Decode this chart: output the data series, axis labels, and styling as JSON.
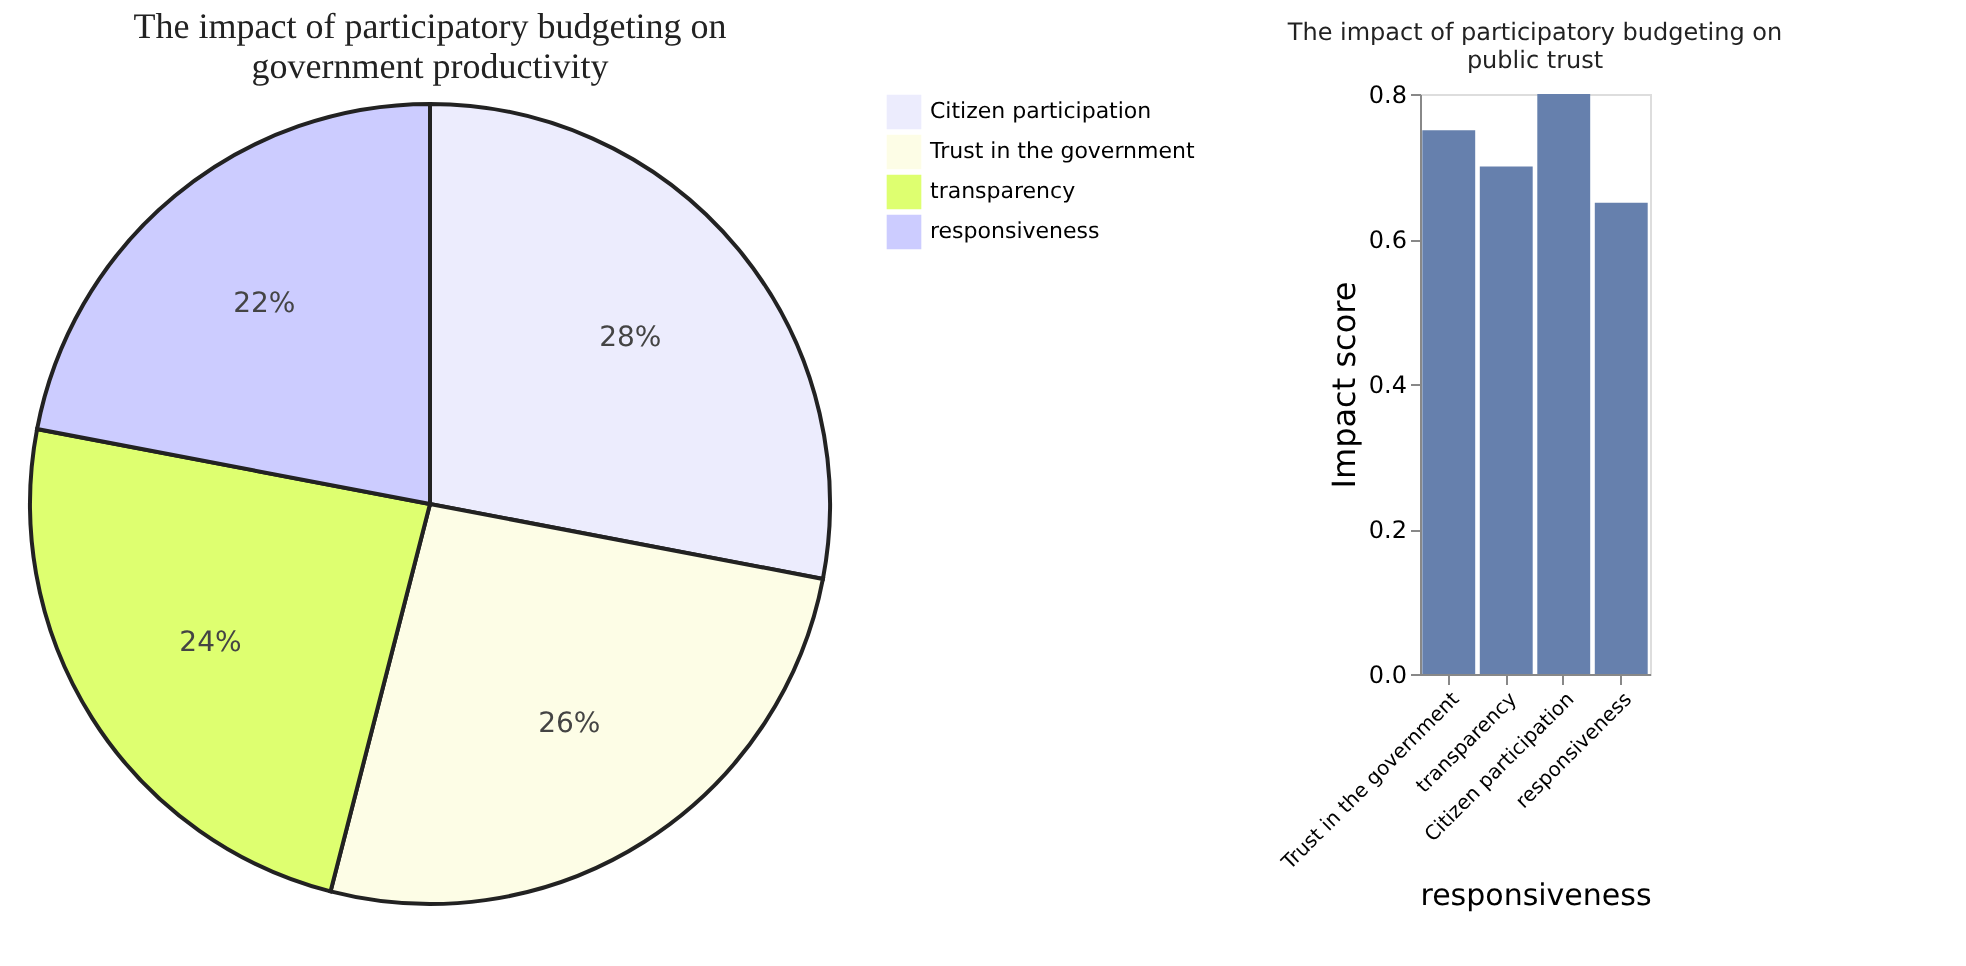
{
  "chart_data": [
    {
      "type": "pie",
      "title": "The impact of participatory budgeting on government productivity",
      "categories": [
        "Citizen participation",
        "Trust in the government",
        "transparency",
        "responsiveness"
      ],
      "values": [
        28,
        26,
        24,
        22
      ],
      "colors": [
        "#ececfd",
        "#fdfde6",
        "#deff70",
        "#ccccff"
      ],
      "value_labels": [
        "28%",
        "26%",
        "24%",
        "22%"
      ],
      "legend": "right"
    },
    {
      "type": "bar",
      "title": "The impact of participatory budgeting on public trust",
      "categories": [
        "Trust in the government",
        "transparency",
        "Citizen participation",
        "responsiveness"
      ],
      "values": [
        0.75,
        0.7,
        0.8,
        0.65
      ],
      "color": "#6680ad",
      "xlabel": "responsiveness",
      "ylabel": "Impact score",
      "ylim": [
        0,
        0.8
      ],
      "yticks": [
        {
          "value": 0,
          "label": "0.0"
        },
        {
          "value": 0.2,
          "label": "0.2"
        },
        {
          "value": 0.4,
          "label": "0.4"
        },
        {
          "value": 0.6,
          "label": "0.6"
        },
        {
          "value": 0.8,
          "label": "0.8"
        }
      ],
      "grid": false
    }
  ]
}
